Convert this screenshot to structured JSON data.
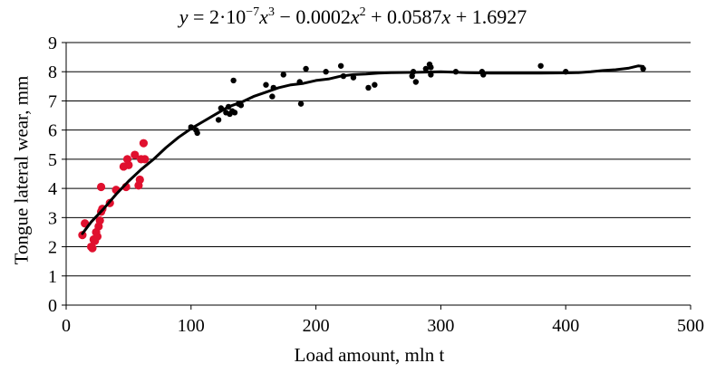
{
  "chart_data": {
    "type": "scatter",
    "title": {
      "y": "y",
      "eq": "= 2·10",
      "e1": "−7",
      "x3": "x",
      "p3": "3",
      "minus": " − 0.0002",
      "x2": "x",
      "p2": "2",
      "rest": " + 0.0587",
      "x1": "x",
      "tail": " + 1.6927"
    },
    "xlabel": "Load amount, mln t",
    "ylabel": "Tongue lateral wear, mm",
    "xlim": [
      0,
      500
    ],
    "ylim": [
      0,
      9
    ],
    "xticks": [
      0,
      100,
      200,
      300,
      400,
      500
    ],
    "yticks": [
      0,
      1,
      2,
      3,
      4,
      5,
      6,
      7,
      8,
      9
    ],
    "grid": "horizontal",
    "colors": {
      "series_red": "#e0102e",
      "series_black": "#000000",
      "trend": "#000000",
      "grid": "#000000"
    },
    "series": [
      {
        "color_key": "series_red",
        "points": [
          [
            13,
            2.4
          ],
          [
            15,
            2.8
          ],
          [
            20,
            2.0
          ],
          [
            21,
            1.95
          ],
          [
            22,
            2.25
          ],
          [
            23,
            2.2
          ],
          [
            24,
            2.5
          ],
          [
            25,
            2.35
          ],
          [
            26,
            2.7
          ],
          [
            27,
            2.9
          ],
          [
            28,
            3.2
          ],
          [
            28,
            4.05
          ],
          [
            29,
            3.3
          ],
          [
            35,
            3.5
          ],
          [
            40,
            3.95
          ],
          [
            46,
            4.75
          ],
          [
            48,
            4.05
          ],
          [
            49,
            5.0
          ],
          [
            50,
            4.8
          ],
          [
            55,
            5.15
          ],
          [
            58,
            4.1
          ],
          [
            59,
            4.3
          ],
          [
            60,
            5.0
          ],
          [
            62,
            5.55
          ],
          [
            63,
            5.0
          ]
        ]
      },
      {
        "color_key": "series_black",
        "points": [
          [
            100,
            6.1
          ],
          [
            104,
            6.0
          ],
          [
            105,
            5.9
          ],
          [
            122,
            6.35
          ],
          [
            124,
            6.75
          ],
          [
            128,
            6.6
          ],
          [
            130,
            6.8
          ],
          [
            131,
            6.55
          ],
          [
            133,
            6.65
          ],
          [
            134,
            7.7
          ],
          [
            135,
            6.6
          ],
          [
            138,
            6.9
          ],
          [
            140,
            6.85
          ],
          [
            160,
            7.55
          ],
          [
            165,
            7.15
          ],
          [
            166,
            7.45
          ],
          [
            174,
            7.9
          ],
          [
            187,
            7.65
          ],
          [
            188,
            6.9
          ],
          [
            192,
            8.1
          ],
          [
            208,
            8.0
          ],
          [
            220,
            8.2
          ],
          [
            222,
            7.85
          ],
          [
            230,
            7.8
          ],
          [
            242,
            7.45
          ],
          [
            247,
            7.55
          ],
          [
            277,
            7.85
          ],
          [
            278,
            8.0
          ],
          [
            280,
            7.65
          ],
          [
            288,
            8.1
          ],
          [
            291,
            8.25
          ],
          [
            292,
            8.15
          ],
          [
            292,
            7.9
          ],
          [
            312,
            8.0
          ],
          [
            333,
            8.0
          ],
          [
            334,
            7.9
          ],
          [
            380,
            8.2
          ],
          [
            400,
            8.0
          ],
          [
            462,
            8.1
          ]
        ]
      }
    ],
    "trend": [
      [
        13,
        2.45
      ],
      [
        20,
        2.85
      ],
      [
        30,
        3.3
      ],
      [
        40,
        3.8
      ],
      [
        50,
        4.25
      ],
      [
        60,
        4.65
      ],
      [
        70,
        5.0
      ],
      [
        80,
        5.4
      ],
      [
        90,
        5.75
      ],
      [
        100,
        6.05
      ],
      [
        110,
        6.3
      ],
      [
        120,
        6.55
      ],
      [
        130,
        6.8
      ],
      [
        140,
        6.95
      ],
      [
        150,
        7.15
      ],
      [
        160,
        7.3
      ],
      [
        170,
        7.45
      ],
      [
        180,
        7.55
      ],
      [
        190,
        7.6
      ],
      [
        200,
        7.7
      ],
      [
        210,
        7.75
      ],
      [
        220,
        7.85
      ],
      [
        230,
        7.9
      ],
      [
        240,
        7.92
      ],
      [
        250,
        7.95
      ],
      [
        260,
        7.97
      ],
      [
        280,
        7.98
      ],
      [
        300,
        8.0
      ],
      [
        320,
        7.97
      ],
      [
        340,
        7.95
      ],
      [
        360,
        7.95
      ],
      [
        380,
        7.95
      ],
      [
        400,
        7.96
      ],
      [
        410,
        7.97
      ],
      [
        420,
        8.0
      ],
      [
        430,
        8.04
      ],
      [
        440,
        8.07
      ],
      [
        450,
        8.12
      ],
      [
        458,
        8.2
      ],
      [
        462,
        8.18
      ]
    ]
  }
}
